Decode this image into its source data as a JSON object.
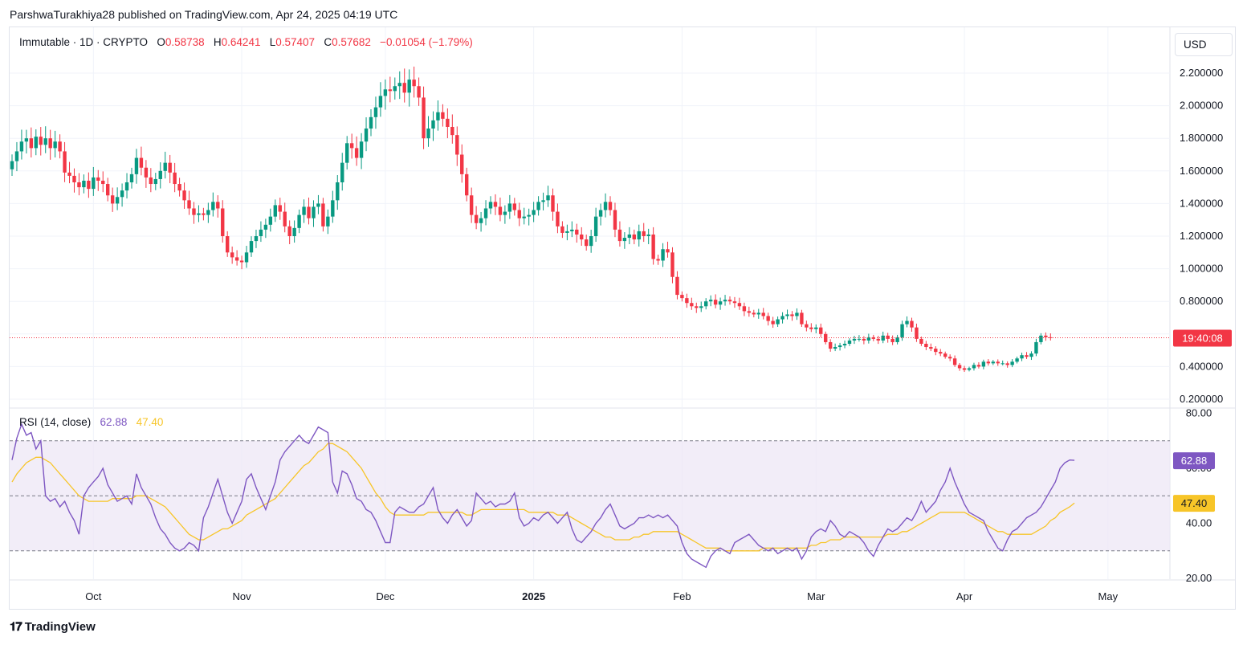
{
  "header": {
    "publisher": "ParshwaTurakhiya28 published on TradingView.com, Apr 24, 2025 04:19 UTC"
  },
  "legend": {
    "symbol": "Immutable · 1D · CRYPTO",
    "o_label": "O",
    "o_value": "0.58738",
    "h_label": "H",
    "h_value": "0.64241",
    "l_label": "L",
    "l_value": "0.57407",
    "c_label": "C",
    "c_value": "0.57682",
    "change": "−0.01054 (−1.79%)"
  },
  "currency_button": "USD",
  "countdown": "19:40:08",
  "rsi": {
    "label": "RSI (14, close)",
    "value": "62.88",
    "ma_value": "47.40",
    "color": "#7e57c2",
    "ma_color": "#f7c528"
  },
  "footer": {
    "brand": "TradingView",
    "logo": "TV-logo-icon"
  },
  "colors": {
    "up": "#089981",
    "down": "#f23645",
    "grid": "#f0f3fa",
    "band": "#ede7f6"
  },
  "chart_data": [
    {
      "type": "candlestick",
      "title": "Immutable · 1D · CRYPTO",
      "x_ticks": [
        "Oct",
        "Nov",
        "Dec",
        "2025",
        "Feb",
        "Mar",
        "Apr",
        "May"
      ],
      "y_ticks": [
        "0.200000",
        "0.400000",
        "0.600000",
        "0.800000",
        "1.000000",
        "1.200000",
        "1.400000",
        "1.600000",
        "1.800000",
        "2.000000",
        "2.200000"
      ],
      "ylim": [
        0.16,
        2.36
      ],
      "last_close": 0.57682,
      "close_series": {
        "start": "2024-09-14",
        "step_days": 1,
        "values": [
          1.66,
          1.72,
          1.78,
          1.8,
          1.74,
          1.81,
          1.76,
          1.8,
          1.74,
          1.78,
          1.72,
          1.59,
          1.57,
          1.53,
          1.5,
          1.54,
          1.49,
          1.56,
          1.54,
          1.52,
          1.45,
          1.4,
          1.44,
          1.48,
          1.53,
          1.58,
          1.68,
          1.62,
          1.56,
          1.52,
          1.55,
          1.6,
          1.65,
          1.59,
          1.52,
          1.48,
          1.42,
          1.37,
          1.33,
          1.34,
          1.33,
          1.36,
          1.41,
          1.37,
          1.2,
          1.1,
          1.07,
          1.05,
          1.04,
          1.1,
          1.17,
          1.2,
          1.24,
          1.27,
          1.32,
          1.39,
          1.35,
          1.26,
          1.2,
          1.25,
          1.33,
          1.38,
          1.31,
          1.38,
          1.4,
          1.26,
          1.32,
          1.42,
          1.53,
          1.65,
          1.77,
          1.74,
          1.68,
          1.78,
          1.86,
          1.93,
          1.99,
          2.06,
          2.1,
          2.09,
          2.12,
          2.14,
          2.08,
          2.16,
          2.12,
          2.05,
          1.8,
          1.86,
          1.91,
          1.96,
          1.92,
          1.87,
          1.82,
          1.7,
          1.58,
          1.45,
          1.33,
          1.28,
          1.31,
          1.37,
          1.41,
          1.38,
          1.33,
          1.35,
          1.4,
          1.36,
          1.31,
          1.32,
          1.33,
          1.36,
          1.41,
          1.42,
          1.45,
          1.35,
          1.26,
          1.22,
          1.23,
          1.24,
          1.21,
          1.18,
          1.14,
          1.2,
          1.32,
          1.36,
          1.41,
          1.36,
          1.24,
          1.17,
          1.19,
          1.21,
          1.18,
          1.23,
          1.2,
          1.21,
          1.06,
          1.05,
          1.12,
          1.1,
          0.95,
          0.84,
          0.82,
          0.79,
          0.77,
          0.76,
          0.77,
          0.8,
          0.81,
          0.78,
          0.8,
          0.81,
          0.8,
          0.79,
          0.77,
          0.74,
          0.73,
          0.72,
          0.73,
          0.71,
          0.68,
          0.66,
          0.69,
          0.71,
          0.72,
          0.71,
          0.73,
          0.66,
          0.64,
          0.63,
          0.64,
          0.6,
          0.55,
          0.51,
          0.52,
          0.53,
          0.54,
          0.56,
          0.57,
          0.57,
          0.56,
          0.58,
          0.57,
          0.56,
          0.59,
          0.57,
          0.55,
          0.58,
          0.66,
          0.68,
          0.64,
          0.57,
          0.54,
          0.52,
          0.51,
          0.49,
          0.48,
          0.46,
          0.45,
          0.41,
          0.39,
          0.38,
          0.39,
          0.41,
          0.4,
          0.43,
          0.42,
          0.43,
          0.42,
          0.42,
          0.41,
          0.43,
          0.45,
          0.47,
          0.46,
          0.48,
          0.55,
          0.59,
          0.58,
          0.577
        ]
      }
    },
    {
      "type": "line",
      "title": "RSI (14, close)",
      "y_ticks": [
        "20.00",
        "40.00",
        "60.00",
        "80.00"
      ],
      "ylim": [
        20,
        80
      ],
      "bands": [
        30,
        50,
        70
      ],
      "series": [
        {
          "name": "RSI",
          "values": [
            63,
            71,
            76,
            72,
            73,
            67,
            70,
            50,
            48,
            49,
            46,
            48,
            44,
            41,
            36,
            50,
            53,
            55,
            57,
            60,
            54,
            51,
            48,
            49,
            50,
            47,
            58,
            53,
            50,
            47,
            42,
            38,
            36,
            33,
            31,
            30,
            31,
            33,
            32,
            30,
            42,
            46,
            51,
            56,
            50,
            44,
            40,
            44,
            48,
            56,
            58,
            53,
            49,
            45,
            50,
            55,
            63,
            66,
            68,
            70,
            72,
            70,
            69,
            72,
            75,
            74,
            73,
            55,
            51,
            59,
            58,
            54,
            49,
            48,
            45,
            44,
            41,
            37,
            33,
            33,
            44,
            46,
            45,
            44,
            44,
            46,
            47,
            50,
            53,
            45,
            42,
            40,
            43,
            45,
            42,
            39,
            41,
            51,
            49,
            47,
            48,
            46,
            47,
            47,
            48,
            51,
            42,
            39,
            40,
            42,
            41,
            43,
            44,
            42,
            40,
            42,
            44,
            38,
            34,
            33,
            35,
            37,
            40,
            42,
            45,
            47,
            43,
            39,
            38,
            39,
            40,
            42,
            42,
            43,
            42,
            43,
            42,
            43,
            41,
            39,
            33,
            29,
            27,
            26,
            25,
            24,
            28,
            30,
            31,
            30,
            29,
            33,
            34,
            35,
            36,
            34,
            32,
            31,
            30,
            31,
            29,
            30,
            31,
            30,
            31,
            27,
            30,
            35,
            37,
            38,
            37,
            41,
            39,
            36,
            35,
            37,
            36,
            35,
            33,
            30,
            28,
            32,
            35,
            38,
            37,
            38,
            40,
            42,
            41,
            44,
            48,
            44,
            46,
            48,
            52,
            55,
            60,
            55,
            51,
            47,
            44,
            43,
            42,
            41,
            37,
            34,
            31,
            30,
            34,
            37,
            38,
            40,
            42,
            43,
            44,
            46,
            49,
            52,
            55,
            60,
            62,
            63,
            62.88
          ]
        },
        {
          "name": "RSI-based MA",
          "values": [
            55,
            58,
            60,
            62,
            63,
            64,
            64,
            63,
            62,
            60,
            58,
            56,
            54,
            52,
            50,
            49,
            48,
            48,
            48,
            48,
            48,
            49,
            49,
            49,
            49,
            49,
            50,
            50,
            50,
            49,
            48,
            47,
            46,
            44,
            42,
            40,
            38,
            36,
            35,
            34,
            34,
            35,
            36,
            37,
            38,
            38,
            39,
            40,
            41,
            43,
            44,
            45,
            46,
            47,
            48,
            49,
            51,
            53,
            55,
            57,
            59,
            61,
            62,
            64,
            66,
            67,
            69,
            69,
            68,
            67,
            66,
            64,
            62,
            60,
            57,
            54,
            51,
            49,
            46,
            44,
            43,
            43,
            43,
            43,
            43,
            43,
            43,
            44,
            44,
            44,
            44,
            44,
            44,
            44,
            44,
            43,
            43,
            44,
            45,
            45,
            45,
            45,
            45,
            45,
            45,
            45,
            45,
            45,
            44,
            44,
            44,
            44,
            44,
            44,
            43,
            43,
            43,
            42,
            41,
            40,
            39,
            38,
            37,
            36,
            35,
            35,
            34,
            34,
            34,
            34,
            35,
            35,
            36,
            36,
            37,
            37,
            37,
            37,
            37,
            37,
            36,
            35,
            34,
            33,
            32,
            31,
            31,
            31,
            31,
            30,
            30,
            30,
            30,
            30,
            30,
            30,
            30,
            31,
            31,
            31,
            31,
            31,
            31,
            31,
            31,
            31,
            31,
            32,
            32,
            33,
            33,
            34,
            34,
            34,
            35,
            35,
            35,
            35,
            35,
            35,
            35,
            35,
            35,
            36,
            36,
            36,
            37,
            37,
            38,
            39,
            40,
            41,
            42,
            43,
            44,
            44,
            44,
            44,
            44,
            44,
            43,
            42,
            41,
            40,
            39,
            38,
            37,
            37,
            36,
            36,
            36,
            36,
            36,
            36,
            37,
            38,
            39,
            41,
            42,
            44,
            45,
            46,
            47.4
          ]
        }
      ]
    }
  ]
}
